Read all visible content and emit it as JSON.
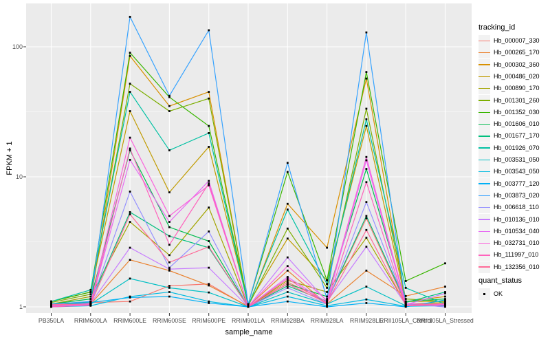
{
  "figure": {
    "x_axis_title": "sample_name",
    "y_axis_title": "FPKM + 1",
    "legend": {
      "tracking_title": "tracking_id",
      "quant_title": "quant_status",
      "quant_ok_label": "OK"
    },
    "colors": {
      "panel_background": "#EBEBEB",
      "grid": "#FFFFFF",
      "tick_text": "#4D4D4D",
      "point": "#000000",
      "legend_key_background": "#F2F2F2"
    }
  },
  "chart_data": {
    "type": "line",
    "xlabel": "sample_name",
    "ylabel": "FPKM + 1",
    "y_scale": "log10",
    "ylim": [
      0.9,
      215
    ],
    "y_major_ticks": [
      1,
      10,
      100
    ],
    "y_tick_labels": [
      "1",
      "10",
      "100"
    ],
    "y_minor_ticks": [
      3.162,
      31.62
    ],
    "grid": true,
    "legend_position": "right",
    "point_style": "small black square (quant_status = OK)",
    "categories": [
      "PB350LA",
      "RRIM600LA",
      "RRIM600LE",
      "RRIM600SE",
      "RRIM600PE",
      "RRIM901LA",
      "RRIM928BA",
      "RRIM928LA",
      "RRIM928LE",
      "RRII105LA_Control",
      "RRII105LA_Stressed"
    ],
    "series": [
      {
        "name": "Hb_000007_330",
        "color": "#F8766D",
        "values": [
          1.05,
          1.08,
          1.1,
          1.45,
          1.5,
          1.0,
          1.55,
          1.1,
          4.8,
          1.05,
          1.05
        ]
      },
      {
        "name": "Hb_000265_170",
        "color": "#EA8331",
        "values": [
          1.02,
          1.05,
          2.3,
          1.9,
          1.46,
          1.01,
          1.9,
          1.05,
          1.9,
          1.21,
          1.43
        ]
      },
      {
        "name": "Hb_000302_360",
        "color": "#D89000",
        "values": [
          1.0,
          1.1,
          85.0,
          35.0,
          45.0,
          1.0,
          6.2,
          2.85,
          57.0,
          1.1,
          1.2
        ]
      },
      {
        "name": "Hb_000486_020",
        "color": "#C09B00",
        "values": [
          1.1,
          1.3,
          32.0,
          7.6,
          17.0,
          1.05,
          3.35,
          1.6,
          24.6,
          1.1,
          1.1
        ]
      },
      {
        "name": "Hb_000890_170",
        "color": "#A3A500",
        "values": [
          1.05,
          1.2,
          4.5,
          2.5,
          5.8,
          1.0,
          1.6,
          1.3,
          3.4,
          1.05,
          1.08
        ]
      },
      {
        "name": "Hb_001301_260",
        "color": "#7CAE00",
        "values": [
          1.08,
          1.25,
          52.0,
          32.0,
          40.0,
          1.02,
          4.0,
          1.4,
          33.4,
          1.15,
          1.1
        ]
      },
      {
        "name": "Hb_001352_030",
        "color": "#39B600",
        "values": [
          1.1,
          1.3,
          90.0,
          41.0,
          24.6,
          1.05,
          10.9,
          1.6,
          64.0,
          1.58,
          2.16
        ]
      },
      {
        "name": "Hb_001606_010",
        "color": "#00BB4E",
        "values": [
          1.05,
          1.15,
          16.0,
          4.1,
          3.2,
          1.0,
          1.5,
          1.2,
          11.5,
          1.1,
          1.15
        ]
      },
      {
        "name": "Hb_001677_170",
        "color": "#00BF7D",
        "values": [
          1.02,
          1.1,
          5.35,
          3.5,
          2.85,
          1.0,
          1.45,
          1.1,
          5.0,
          1.08,
          1.3
        ]
      },
      {
        "name": "Hb_001926_070",
        "color": "#00C1A3",
        "values": [
          1.1,
          1.35,
          45.0,
          16.0,
          21.7,
          1.02,
          5.6,
          1.5,
          27.7,
          1.4,
          1.05
        ]
      },
      {
        "name": "Hb_003531_050",
        "color": "#00BFC4",
        "values": [
          1.0,
          1.05,
          1.65,
          1.4,
          1.29,
          1.0,
          1.3,
          1.05,
          1.43,
          1.02,
          1.05
        ]
      },
      {
        "name": "Hb_003543_050",
        "color": "#00BAE0",
        "values": [
          1.0,
          1.02,
          1.2,
          1.3,
          1.1,
          1.0,
          1.2,
          1.02,
          1.14,
          1.01,
          1.02
        ]
      },
      {
        "name": "Hb_003777_120",
        "color": "#00B0F6",
        "values": [
          1.02,
          1.08,
          1.18,
          1.2,
          1.07,
          1.0,
          1.1,
          1.0,
          1.07,
          1.0,
          1.13
        ]
      },
      {
        "name": "Hb_003873_020",
        "color": "#35A2FF",
        "values": [
          1.05,
          1.1,
          170.0,
          42.0,
          134.0,
          1.05,
          12.8,
          1.15,
          129.0,
          1.05,
          1.05
        ]
      },
      {
        "name": "Hb_006618_110",
        "color": "#9590FF",
        "values": [
          1.0,
          1.05,
          7.7,
          2.0,
          3.8,
          1.0,
          1.4,
          1.05,
          6.4,
          1.05,
          1.0
        ]
      },
      {
        "name": "Hb_010136_010",
        "color": "#C77CFF",
        "values": [
          1.03,
          1.06,
          2.85,
          1.95,
          2.0,
          1.0,
          2.4,
          1.1,
          2.9,
          1.04,
          1.27
        ]
      },
      {
        "name": "Hb_010534_040",
        "color": "#E76BF3",
        "values": [
          1.0,
          1.04,
          13.5,
          4.5,
          9.3,
          1.0,
          1.7,
          1.08,
          13.4,
          1.03,
          1.05
        ]
      },
      {
        "name": "Hb_032731_010",
        "color": "#FA62DB",
        "values": [
          1.02,
          1.06,
          20.0,
          5.0,
          8.6,
          1.01,
          2.06,
          1.12,
          14.2,
          1.06,
          1.04
        ]
      },
      {
        "name": "Hb_111997_010",
        "color": "#FF62BC",
        "values": [
          1.0,
          1.03,
          16.5,
          3.0,
          8.9,
          1.0,
          1.65,
          1.05,
          9.1,
          1.02,
          1.03
        ]
      },
      {
        "name": "Hb_132356_010",
        "color": "#FF6A98",
        "values": [
          1.04,
          1.05,
          5.15,
          2.2,
          2.9,
          1.0,
          1.5,
          1.07,
          3.9,
          1.03,
          1.06
        ]
      }
    ]
  }
}
